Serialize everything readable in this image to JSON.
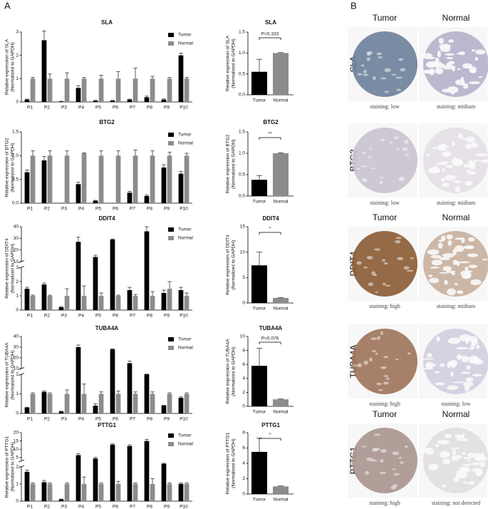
{
  "panel_a_label": "A",
  "chart_data": [
    {
      "type": "bar",
      "title": "SLA",
      "ylabel": [
        "Relative expression of SLA",
        "(Normalized to GAPDH)"
      ],
      "categories": [
        "P1",
        "P2",
        "P3",
        "P4",
        "P5",
        "P6",
        "P7",
        "P8",
        "P9",
        "P10"
      ],
      "series": [
        {
          "name": "Tumor",
          "color": "#000000",
          "values": [
            0.1,
            2.65,
            0.02,
            0.6,
            0.05,
            0.05,
            0.1,
            0.2,
            0.1,
            2.0
          ],
          "errors": [
            0.02,
            0.4,
            0.01,
            0.1,
            0.02,
            0.02,
            0.02,
            0.05,
            0.03,
            0.1
          ]
        },
        {
          "name": "Normal",
          "color": "#8c8c8c",
          "values": [
            1.0,
            1.0,
            1.0,
            1.0,
            1.0,
            1.0,
            1.0,
            1.0,
            1.0,
            1.0
          ],
          "errors": [
            0.05,
            0.2,
            0.25,
            0.05,
            0.15,
            0.3,
            0.45,
            0.1,
            0.05,
            0.05
          ]
        }
      ],
      "ylim": [
        0,
        3
      ],
      "yticks": [
        0,
        1,
        2,
        3
      ]
    },
    {
      "type": "bar",
      "title": "SLA",
      "ylabel": [
        "Relative expression of SLA",
        "(Normalized to GAPDH)"
      ],
      "categories": [
        "Tumor",
        "Normal"
      ],
      "values": [
        0.55,
        1.0
      ],
      "errors": [
        0.3,
        0.01
      ],
      "colors": [
        "#000000",
        "#8c8c8c"
      ],
      "annotation": "P=0.333",
      "ylim": [
        0,
        1.5
      ],
      "yticks": [
        {
          "value": 0,
          "label": "0.0"
        },
        0.5,
        {
          "value": 1,
          "label": "1.0"
        },
        1.5
      ]
    },
    {
      "type": "bar",
      "title": "BTG2",
      "ylabel": [
        "Relative expression of BTG2",
        "(Normalized to GAPDH)"
      ],
      "categories": [
        "P1",
        "P2",
        "P3",
        "P4",
        "P5",
        "P6",
        "P7",
        "P8",
        "P9",
        "P10"
      ],
      "series": [
        {
          "name": "Tumor",
          "color": "#000000",
          "values": [
            0.65,
            0.9,
            0.0,
            0.4,
            0.05,
            0.0,
            0.22,
            0.15,
            0.75,
            0.62
          ],
          "errors": [
            0.05,
            0.08,
            0.0,
            0.04,
            0.01,
            0.0,
            0.03,
            0.02,
            0.06,
            0.05
          ]
        },
        {
          "name": "Normal",
          "color": "#8c8c8c",
          "values": [
            1.0,
            1.0,
            1.0,
            1.05,
            1.0,
            1.0,
            1.0,
            1.0,
            1.0,
            1.0
          ],
          "errors": [
            0.1,
            0.1,
            0.1,
            0.01,
            0.1,
            0.1,
            0.12,
            0.1,
            0.07,
            0.05
          ]
        }
      ],
      "ylim": [
        0,
        1.5
      ],
      "yticks": [
        {
          "value": 0,
          "label": "0.0"
        },
        0.5,
        {
          "value": 1,
          "label": "1.0"
        },
        1.5
      ]
    },
    {
      "type": "bar",
      "title": "BTG2",
      "ylabel": [
        "Relative expression of BTG2",
        "(Normalized to GAPDH)"
      ],
      "categories": [
        "Tumor",
        "Normal"
      ],
      "values": [
        0.38,
        1.0
      ],
      "errors": [
        0.1,
        0.01
      ],
      "colors": [
        "#000000",
        "#8c8c8c"
      ],
      "annotation": "**",
      "ylim": [
        0,
        1.5
      ],
      "yticks": [
        {
          "value": 0,
          "label": "0.0"
        },
        0.5,
        {
          "value": 1,
          "label": "1.0"
        },
        1.5
      ]
    },
    {
      "type": "bar",
      "title": "DDIT4",
      "ylabel": [
        "Relative expression of DDIT4",
        "(Normalized to GAPDH)"
      ],
      "categories": [
        "P1",
        "P2",
        "P3",
        "P4",
        "P5",
        "P6",
        "P7",
        "P8",
        "P9",
        "P10"
      ],
      "series": [
        {
          "name": "Tumor",
          "color": "#000000",
          "values": [
            1.5,
            1.8,
            0.2,
            27,
            14,
            29,
            1.4,
            36,
            1.2,
            1.4
          ],
          "errors": [
            0.1,
            0.1,
            0.05,
            4,
            1.5,
            0.5,
            0.2,
            4,
            0.2,
            0.2
          ]
        },
        {
          "name": "Normal",
          "color": "#8c8c8c",
          "values": [
            1.0,
            1.0,
            1.0,
            1.0,
            1.0,
            1.0,
            1.0,
            1.0,
            1.5,
            1.0
          ],
          "errors": [
            0.05,
            0.05,
            0.5,
            0.7,
            0.2,
            0.05,
            0.1,
            0.3,
            0.5,
            0.2
          ]
        }
      ],
      "ylim": [
        0,
        40
      ],
      "ybreak": [
        3,
        10
      ],
      "yticks": [
        0,
        1,
        2,
        3,
        10,
        20,
        30,
        40
      ]
    },
    {
      "type": "bar",
      "title": "DDIT4",
      "ylabel": [
        "Relative expression of DDIT4",
        "(Normalized to GAPDH)"
      ],
      "categories": [
        "Tumor",
        "Normal"
      ],
      "values": [
        7.4,
        1.0
      ],
      "errors": [
        2.6,
        0.05
      ],
      "colors": [
        "#000000",
        "#8c8c8c"
      ],
      "annotation": "*",
      "ylim": [
        0,
        15
      ],
      "yticks": [
        0,
        5,
        10,
        15
      ]
    },
    {
      "type": "bar",
      "title": "TUBA4A",
      "ylabel": [
        "Relative expression of TUBA4A",
        "(Normalized to GAPDH)"
      ],
      "categories": [
        "P1",
        "P2",
        "P3",
        "P4",
        "P5",
        "P6",
        "P7",
        "P8",
        "P9",
        "P10"
      ],
      "series": [
        {
          "name": "Tumor",
          "color": "#000000",
          "values": [
            0.3,
            1.1,
            0.1,
            30,
            0.4,
            28,
            15,
            2.0,
            0.4,
            0.8
          ],
          "errors": [
            0.02,
            0.05,
            0.02,
            2,
            0.1,
            0.5,
            2,
            0.2,
            0.02,
            0.05
          ]
        },
        {
          "name": "Normal",
          "color": "#8c8c8c",
          "values": [
            1.0,
            1.0,
            1.0,
            1.0,
            1.0,
            1.0,
            1.0,
            1.0,
            1.0,
            1.0
          ],
          "errors": [
            0.05,
            0.05,
            0.2,
            0.5,
            0.1,
            0.15,
            0.1,
            0.1,
            0.05,
            0.05
          ]
        }
      ],
      "ylim": [
        0,
        40
      ],
      "ybreak": [
        2,
        10
      ],
      "yticks": [
        0,
        1,
        2,
        10,
        20,
        30,
        40
      ]
    },
    {
      "type": "bar",
      "title": "TUBA4A",
      "ylabel": [
        "Relative expression of TUBA4A",
        "(Normalized to GAPDH)"
      ],
      "categories": [
        "Tumor",
        "Normal"
      ],
      "values": [
        5.8,
        1.0
      ],
      "errors": [
        2.5,
        0.05
      ],
      "colors": [
        "#000000",
        "#8c8c8c"
      ],
      "annotation": "P=0.076",
      "ylim": [
        0,
        10
      ],
      "yticks": [
        0,
        2,
        4,
        6,
        8,
        10
      ]
    },
    {
      "type": "bar",
      "title": "PTTG1",
      "ylabel": [
        "Relative expression of PTTG1",
        "(Normalized to GAPDH)"
      ],
      "categories": [
        "P1",
        "P2",
        "P3",
        "P4",
        "P5",
        "P6",
        "P7",
        "P8",
        "P9",
        "P10"
      ],
      "series": [
        {
          "name": "Tumor",
          "color": "#000000",
          "values": [
            1.7,
            1.1,
            0.1,
            6.5,
            4.5,
            12.8,
            12,
            15,
            2.5,
            1.0
          ],
          "errors": [
            0.1,
            0.1,
            0.02,
            0.8,
            0.7,
            0.5,
            0.7,
            1,
            0.1,
            0.05
          ]
        },
        {
          "name": "Normal",
          "color": "#8c8c8c",
          "values": [
            1.0,
            1.0,
            1.0,
            1.0,
            1.0,
            1.0,
            1.0,
            1.0,
            1.0,
            1.0
          ],
          "errors": [
            0.05,
            0.05,
            0.05,
            0.4,
            0.05,
            0.15,
            0.05,
            0.3,
            0.05,
            0.05
          ]
        }
      ],
      "ylim": [
        0,
        20
      ],
      "ybreak": [
        2,
        3
      ],
      "yticks": [
        0,
        1,
        2,
        5,
        10,
        15,
        20
      ]
    },
    {
      "type": "bar",
      "title": "PTTG1",
      "ylabel": [
        "Relative expression of PTTG1",
        "(Normalized to GAPDH)"
      ],
      "categories": [
        "Tumor",
        "Normal"
      ],
      "values": [
        5.5,
        1.0
      ],
      "errors": [
        1.8,
        0.05
      ],
      "colors": [
        "#000000",
        "#8c8c8c"
      ],
      "annotation": "*",
      "ylim": [
        0,
        8
      ],
      "yticks": [
        0,
        2,
        4,
        6,
        8
      ]
    }
  ],
  "panel_b": {
    "label": "B",
    "rows": [
      {
        "gene": "SLA",
        "tumor_header": "Tumor",
        "normal_header": "Normal",
        "tumor_caption": "staining: low",
        "normal_caption": "staining: midium",
        "tumor_color": "#6b7f9a",
        "normal_color": "#8a86b0"
      },
      {
        "gene": "BTG2",
        "tumor_caption": "staining: low",
        "normal_caption": "staining: midium",
        "tumor_color": "#c9c2cf",
        "normal_color": "#d8d2dc"
      },
      {
        "gene": "DDIT4",
        "tumor_header": "Tumor",
        "normal_header": "Normal",
        "tumor_caption": "staining: high",
        "normal_caption": "staining: midium",
        "tumor_color": "#8a5a32",
        "normal_color": "#a98466"
      },
      {
        "gene": "TUBA4A",
        "tumor_caption": "staining: high",
        "normal_caption": "staining: low",
        "tumor_color": "#9c7258",
        "normal_color": "#b9b4d2"
      },
      {
        "gene": "PTTG1",
        "tumor_header": "Tumor",
        "normal_header": "Normal",
        "tumor_caption": "staining: high",
        "normal_caption": "staining: not detected",
        "tumor_color": "#a8948e",
        "normal_color": "#d6d0d4"
      }
    ]
  }
}
